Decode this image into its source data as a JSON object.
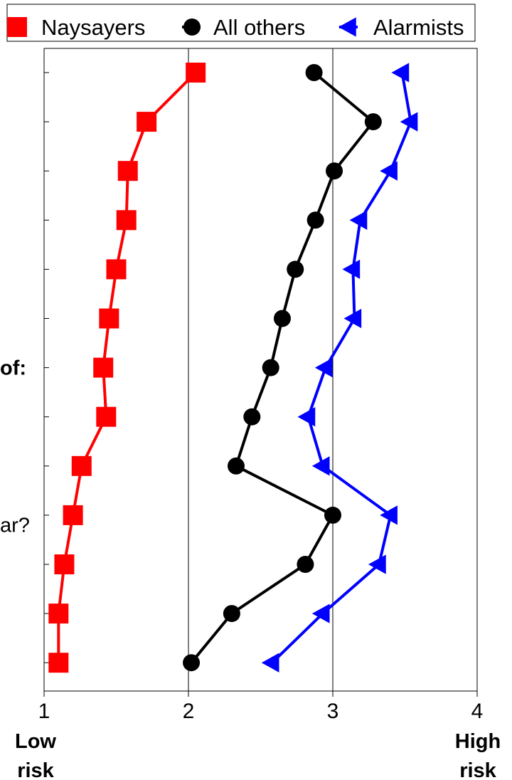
{
  "chart_data": {
    "type": "line",
    "orientation": "horizontal",
    "title": "",
    "xlabel": "",
    "ylabel": "",
    "xlim": [
      1,
      4
    ],
    "xticks": [
      1,
      2,
      3,
      4
    ],
    "x_end_labels": {
      "low": [
        "Low",
        "risk"
      ],
      "high": [
        "High",
        "risk"
      ]
    },
    "vertical_gridlines_at": [
      2,
      3
    ],
    "legend": {
      "placement": "top",
      "entries": [
        "Naysayers",
        "All others",
        "Alarmists"
      ]
    },
    "side_labels": [
      {
        "text": "of:",
        "row": 6
      },
      {
        "text": "ar?",
        "row": 9.2
      }
    ],
    "row_count": 13,
    "series": [
      {
        "name": "Naysayers",
        "color": "#ff0000",
        "marker": "square",
        "values": [
          2.05,
          1.71,
          1.58,
          1.57,
          1.5,
          1.45,
          1.41,
          1.43,
          1.26,
          1.2,
          1.14,
          1.1,
          1.1
        ]
      },
      {
        "name": "All others",
        "color": "#000000",
        "marker": "circle",
        "values": [
          2.87,
          3.28,
          3.01,
          2.88,
          2.74,
          2.65,
          2.57,
          2.44,
          2.33,
          3.0,
          2.81,
          2.3,
          2.02
        ]
      },
      {
        "name": "Alarmists",
        "color": "#0000ff",
        "marker": "triangle",
        "values": [
          3.48,
          3.54,
          3.4,
          3.19,
          3.14,
          3.15,
          2.95,
          2.83,
          2.93,
          3.4,
          3.32,
          2.93,
          2.58
        ]
      }
    ]
  }
}
